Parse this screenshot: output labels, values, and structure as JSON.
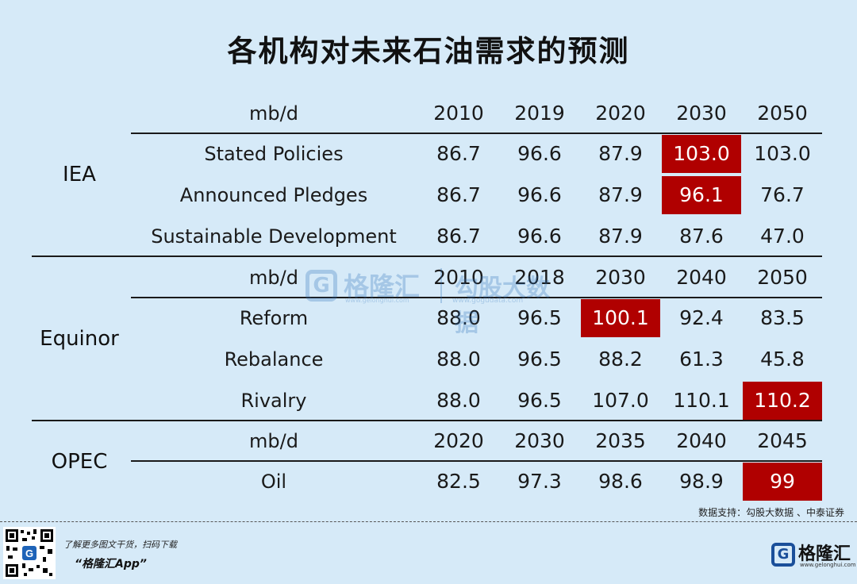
{
  "title": "各机构对未来石油需求的预测",
  "sections": [
    {
      "name": "IEA",
      "header": [
        "mb/d",
        "2010",
        "2019",
        "2020",
        "2030",
        "2050"
      ],
      "rows": [
        {
          "label": "Stated Policies",
          "values": [
            "86.7",
            "96.6",
            "87.9",
            "103.0",
            "103.0"
          ]
        },
        {
          "label": "Announced Pledges",
          "values": [
            "86.7",
            "96.6",
            "87.9",
            "96.1",
            "76.7"
          ]
        },
        {
          "label": "Sustainable Development",
          "values": [
            "86.7",
            "96.6",
            "87.9",
            "87.6",
            "47.0"
          ]
        }
      ]
    },
    {
      "name": "Equinor",
      "header": [
        "mb/d",
        "2010",
        "2018",
        "2030",
        "2040",
        "2050"
      ],
      "rows": [
        {
          "label": "Reform",
          "values": [
            "88.0",
            "96.5",
            "100.1",
            "92.4",
            "83.5"
          ]
        },
        {
          "label": "Rebalance",
          "values": [
            "88.0",
            "96.5",
            "88.2",
            "61.3",
            "45.8"
          ]
        },
        {
          "label": "Rivalry",
          "values": [
            "88.0",
            "96.5",
            "107.0",
            "110.1",
            "110.2"
          ]
        }
      ]
    },
    {
      "name": "OPEC",
      "header": [
        "mb/d",
        "2020",
        "2030",
        "2035",
        "2040",
        "2045"
      ],
      "rows": [
        {
          "label": "Oil",
          "values": [
            "82.5",
            "97.3",
            "98.6",
            "98.9",
            "99"
          ]
        }
      ]
    }
  ],
  "highlight_color": "#b00000",
  "watermark": {
    "brand1": "格隆汇",
    "brand1_url": "www.gelonghui.com",
    "brand2": "勾股大数据",
    "brand2_url": "www.gogudata.com",
    "icon": "G"
  },
  "source": "数据支持：勾股大数据 、中泰证券",
  "footer": {
    "promo_line1": "了解更多图文干货，扫码下载",
    "promo_line2": "“格隆汇App”",
    "logo_icon": "G",
    "logo_text": "格隆汇",
    "logo_sub": "www.gelonghui.com"
  }
}
